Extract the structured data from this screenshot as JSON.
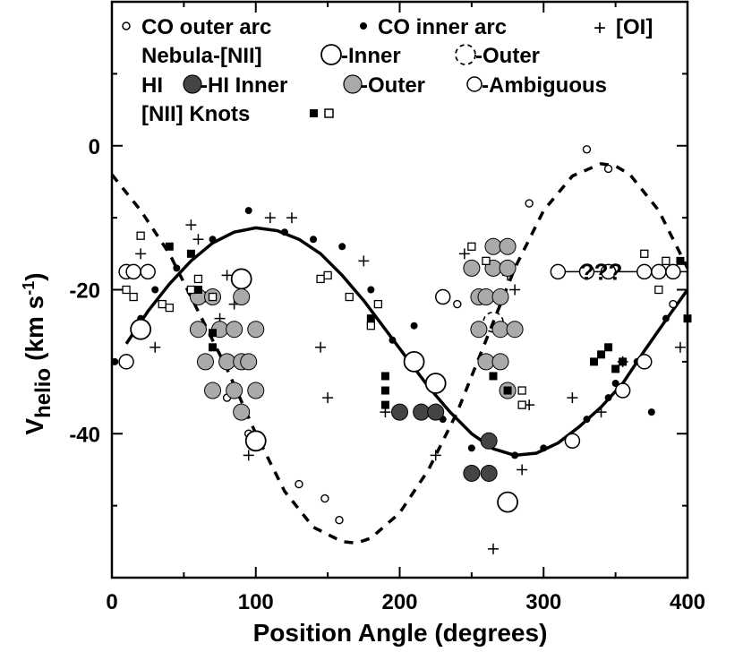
{
  "chart_data": {
    "type": "scatter",
    "title": "",
    "xlabel": "Position Angle (degrees)",
    "ylabel_main": "V",
    "ylabel_sub": "helio",
    "ylabel_units": "(km s",
    "ylabel_sup": "-1",
    "ylabel_close": ")",
    "xlim": [
      0,
      400
    ],
    "ylim": [
      -60,
      20
    ],
    "xticks": [
      0,
      100,
      200,
      300,
      400
    ],
    "xtick_labels": [
      "0",
      "100",
      "200",
      "300",
      "400"
    ],
    "yticks": [
      0,
      -20,
      -40
    ],
    "ytick_labels": [
      "0",
      "-20",
      "-40"
    ],
    "annotation": "???",
    "legend": {
      "row1": [
        "CO outer arc",
        "CO inner arc",
        "[OI]"
      ],
      "row2_label": "Nebula-[NII]",
      "row2": [
        "-Inner",
        "-Outer"
      ],
      "row3_label": "HI",
      "row3": [
        "-HI Inner",
        "-Outer",
        "-Ambiguous"
      ],
      "row4_label": "[NII] Knots"
    },
    "curves": [
      {
        "name": "inner-fit",
        "style": "solid",
        "x": [
          10,
          25,
          40,
          55,
          70,
          85,
          100,
          115,
          130,
          145,
          160,
          175,
          190,
          205,
          220,
          235,
          250,
          265,
          280,
          295,
          310,
          325,
          340,
          355,
          370,
          385,
          400
        ],
        "y": [
          -27.5,
          -23,
          -19.2,
          -16,
          -13.5,
          -12,
          -11.4,
          -11.8,
          -13,
          -15,
          -18,
          -21.5,
          -25.5,
          -29.5,
          -33.5,
          -37,
          -40,
          -42.1,
          -43,
          -42.7,
          -41.3,
          -39,
          -36.3,
          -33,
          -28.5,
          -24.2,
          -20
        ]
      },
      {
        "name": "outer-fit",
        "style": "dashed",
        "x": [
          0,
          20,
          40,
          60,
          80,
          100,
          120,
          140,
          160,
          170,
          180,
          200,
          220,
          240,
          260,
          280,
          300,
          320,
          340,
          350,
          360,
          380,
          400
        ],
        "y": [
          -4,
          -9,
          -15,
          -23,
          -31,
          -40,
          -48,
          -53,
          -55,
          -55.2,
          -54.5,
          -51,
          -45,
          -37,
          -27,
          -17,
          -9,
          -4.2,
          -2.5,
          -2.8,
          -4,
          -9,
          -17
        ]
      }
    ],
    "series": [
      {
        "name": "CO outer arc",
        "marker": "small-open-circle",
        "points": [
          [
            80,
            -35
          ],
          [
            95,
            -40
          ],
          [
            130,
            -47
          ],
          [
            148,
            -49
          ],
          [
            158,
            -52
          ],
          [
            240,
            -22
          ],
          [
            290,
            -8
          ],
          [
            330,
            -0.5
          ],
          [
            345,
            -3.2
          ],
          [
            390,
            -22
          ]
        ]
      },
      {
        "name": "CO inner arc",
        "marker": "small-filled-circle",
        "points": [
          [
            2,
            -30
          ],
          [
            20,
            -24
          ],
          [
            30,
            -20
          ],
          [
            45,
            -17
          ],
          [
            70,
            -13
          ],
          [
            95,
            -9
          ],
          [
            120,
            -12
          ],
          [
            140,
            -13
          ],
          [
            160,
            -14
          ],
          [
            180,
            -20
          ],
          [
            195,
            -27
          ],
          [
            210,
            -25
          ],
          [
            230,
            -38
          ],
          [
            250,
            -42
          ],
          [
            265,
            -41
          ],
          [
            280,
            -43
          ],
          [
            300,
            -42
          ],
          [
            320,
            -41
          ],
          [
            330,
            -38
          ],
          [
            345,
            -35
          ],
          [
            350,
            -33
          ],
          [
            365,
            -30
          ],
          [
            375,
            -37
          ],
          [
            385,
            -24
          ]
        ]
      },
      {
        "name": "[OI]",
        "marker": "plus",
        "points": [
          [
            20,
            -15
          ],
          [
            30,
            -28
          ],
          [
            55,
            -11
          ],
          [
            60,
            -13
          ],
          [
            65,
            -21
          ],
          [
            75,
            -24
          ],
          [
            80,
            -18
          ],
          [
            85,
            -22
          ],
          [
            95,
            -43
          ],
          [
            110,
            -10
          ],
          [
            125,
            -10
          ],
          [
            145,
            -28
          ],
          [
            150,
            -35
          ],
          [
            175,
            -16
          ],
          [
            190,
            -37
          ],
          [
            225,
            -43
          ],
          [
            245,
            -15
          ],
          [
            265,
            -56
          ],
          [
            275,
            -18
          ],
          [
            280,
            -20
          ],
          [
            285,
            -45
          ],
          [
            290,
            -36
          ],
          [
            320,
            -35
          ],
          [
            340,
            -37
          ],
          [
            355,
            -30
          ],
          [
            395,
            -28
          ]
        ]
      },
      {
        "name": "Nebula-[NII] Inner",
        "marker": "large-open-circle",
        "points": [
          [
            20,
            -25.5
          ],
          [
            90,
            -18.5
          ],
          [
            100,
            -41
          ],
          [
            210,
            -30
          ],
          [
            225,
            -33
          ],
          [
            275,
            -49.5
          ]
        ]
      },
      {
        "name": "Nebula-[NII] Outer",
        "marker": "large-dashed-circle",
        "points": [
          [
            265,
            -24.5
          ]
        ]
      },
      {
        "name": "HI Inner",
        "marker": "large-dark-circle",
        "points": [
          [
            200,
            -37
          ],
          [
            215,
            -37
          ],
          [
            225,
            -37
          ],
          [
            250,
            -45.5
          ],
          [
            262,
            -45.5
          ],
          [
            262,
            -41
          ]
        ]
      },
      {
        "name": "HI Outer",
        "marker": "large-gray-circle",
        "points": [
          [
            60,
            -21
          ],
          [
            70,
            -21
          ],
          [
            75,
            -25.5
          ],
          [
            80,
            -30
          ],
          [
            85,
            -34
          ],
          [
            90,
            -30
          ],
          [
            90,
            -37
          ],
          [
            60,
            -25.5
          ],
          [
            65,
            -30
          ],
          [
            70,
            -34
          ],
          [
            85,
            -25.5
          ],
          [
            90,
            -21
          ],
          [
            95,
            -30
          ],
          [
            100,
            -25.5
          ],
          [
            100,
            -34
          ],
          [
            250,
            -17
          ],
          [
            255,
            -21
          ],
          [
            255,
            -25.5
          ],
          [
            260,
            -21
          ],
          [
            260,
            -30
          ],
          [
            265,
            -14
          ],
          [
            265,
            -17
          ],
          [
            270,
            -21
          ],
          [
            270,
            -25.5
          ],
          [
            270,
            -30
          ],
          [
            275,
            -14
          ],
          [
            275,
            -17
          ],
          [
            275,
            -34
          ],
          [
            280,
            -25.5
          ]
        ]
      },
      {
        "name": "HI Ambiguous",
        "marker": "medium-open-circle",
        "points": [
          [
            10,
            -17.5
          ],
          [
            15,
            -17.5
          ],
          [
            25,
            -17.5
          ],
          [
            10,
            -30
          ],
          [
            230,
            -21
          ],
          [
            310,
            -17.5
          ],
          [
            330,
            -17.5
          ],
          [
            345,
            -17.5
          ],
          [
            370,
            -17.5
          ],
          [
            380,
            -17.5
          ],
          [
            390,
            -17.5
          ],
          [
            370,
            -30
          ],
          [
            355,
            -34
          ],
          [
            320,
            -41
          ]
        ]
      },
      {
        "name": "[NII] Knots filled",
        "marker": "filled-square",
        "points": [
          [
            40,
            -14
          ],
          [
            55,
            -15
          ],
          [
            60,
            -20
          ],
          [
            70,
            -26
          ],
          [
            70,
            -28
          ],
          [
            180,
            -24
          ],
          [
            190,
            -32
          ],
          [
            190,
            -34
          ],
          [
            190,
            -36
          ],
          [
            265,
            -32
          ],
          [
            275,
            -34
          ],
          [
            285,
            -36
          ],
          [
            335,
            -30
          ],
          [
            340,
            -29
          ],
          [
            345,
            -28
          ],
          [
            350,
            -31
          ],
          [
            355,
            -30
          ],
          [
            400,
            -24
          ],
          [
            395,
            -16
          ]
        ]
      },
      {
        "name": "[NII] Knots open",
        "marker": "open-square",
        "points": [
          [
            20,
            -12.5
          ],
          [
            10,
            -20
          ],
          [
            15,
            -21
          ],
          [
            35,
            -22
          ],
          [
            40,
            -22.5
          ],
          [
            55,
            -20
          ],
          [
            60,
            -18.5
          ],
          [
            70,
            -21
          ],
          [
            145,
            -18.5
          ],
          [
            150,
            -18
          ],
          [
            165,
            -21
          ],
          [
            180,
            -25
          ],
          [
            185,
            -22
          ],
          [
            250,
            -14
          ],
          [
            260,
            -16
          ],
          [
            285,
            -36
          ],
          [
            285,
            -34
          ],
          [
            370,
            -15
          ],
          [
            385,
            -16
          ],
          [
            380,
            -20
          ]
        ]
      }
    ],
    "ambiguous_line": {
      "x": [
        310,
        400
      ],
      "y": -17.5
    }
  }
}
